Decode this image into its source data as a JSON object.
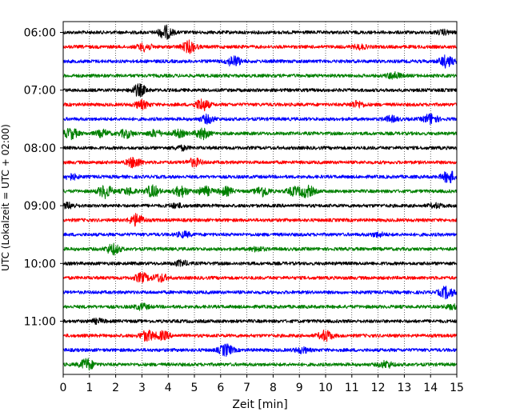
{
  "chart_data": {
    "type": "line",
    "title": "",
    "xlabel": "Zeit  [min]",
    "ylabel": "UTC (Lokalzeit = UTC + 02:00)",
    "xlim": [
      0,
      15
    ],
    "x_ticks": [
      "0",
      "1",
      "2",
      "3",
      "4",
      "5",
      "6",
      "7",
      "8",
      "9",
      "10",
      "11",
      "12",
      "13",
      "14",
      "15"
    ],
    "y_tick_labels": [
      "06:00",
      "07:00",
      "08:00",
      "09:00",
      "10:00",
      "11:00"
    ],
    "grid": "vertical dotted",
    "trace_interval_minutes": 15,
    "trace_start": "06:00",
    "trace_colors": [
      "#000000",
      "#ff0000",
      "#0000ff",
      "#008000"
    ],
    "traces": [
      {
        "start": "06:00",
        "color": "#000000",
        "events": [
          {
            "t": 3.9,
            "a": 1.0
          },
          {
            "t": 14.5,
            "a": 0.3
          }
        ]
      },
      {
        "start": "06:15",
        "color": "#ff0000",
        "events": [
          {
            "t": 3.1,
            "a": 0.6
          },
          {
            "t": 4.8,
            "a": 0.9
          },
          {
            "t": 11.3,
            "a": 0.3
          }
        ]
      },
      {
        "start": "06:30",
        "color": "#0000ff",
        "events": [
          {
            "t": 6.5,
            "a": 0.8
          },
          {
            "t": 14.6,
            "a": 0.9
          }
        ]
      },
      {
        "start": "06:45",
        "color": "#008000",
        "events": [
          {
            "t": 12.6,
            "a": 0.5
          }
        ]
      },
      {
        "start": "07:00",
        "color": "#000000",
        "events": [
          {
            "t": 2.9,
            "a": 0.9
          }
        ]
      },
      {
        "start": "07:15",
        "color": "#ff0000",
        "events": [
          {
            "t": 3.0,
            "a": 0.6
          },
          {
            "t": 5.3,
            "a": 0.9
          },
          {
            "t": 11.2,
            "a": 0.5
          }
        ]
      },
      {
        "start": "07:30",
        "color": "#0000ff",
        "events": [
          {
            "t": 5.5,
            "a": 0.6
          },
          {
            "t": 12.5,
            "a": 0.4
          },
          {
            "t": 14.0,
            "a": 0.8
          }
        ]
      },
      {
        "start": "07:45",
        "color": "#008000",
        "events": [
          {
            "t": 0.3,
            "a": 0.8
          },
          {
            "t": 1.5,
            "a": 0.5
          },
          {
            "t": 2.4,
            "a": 0.6
          },
          {
            "t": 3.5,
            "a": 0.5
          },
          {
            "t": 4.4,
            "a": 0.5
          },
          {
            "t": 5.3,
            "a": 0.8
          }
        ]
      },
      {
        "start": "08:00",
        "color": "#000000",
        "events": [
          {
            "t": 4.5,
            "a": 0.3
          }
        ]
      },
      {
        "start": "08:15",
        "color": "#ff0000",
        "events": [
          {
            "t": 2.7,
            "a": 0.8
          },
          {
            "t": 5.0,
            "a": 0.6
          }
        ]
      },
      {
        "start": "08:30",
        "color": "#0000ff",
        "events": [
          {
            "t": 0.3,
            "a": 0.4
          },
          {
            "t": 14.7,
            "a": 0.9
          }
        ]
      },
      {
        "start": "08:45",
        "color": "#008000",
        "events": [
          {
            "t": 1.6,
            "a": 1.0
          },
          {
            "t": 2.5,
            "a": 0.5
          },
          {
            "t": 3.4,
            "a": 0.9
          },
          {
            "t": 4.5,
            "a": 0.8
          },
          {
            "t": 5.4,
            "a": 0.7
          },
          {
            "t": 6.2,
            "a": 0.6
          },
          {
            "t": 7.6,
            "a": 0.8
          },
          {
            "t": 8.8,
            "a": 0.6
          },
          {
            "t": 9.3,
            "a": 0.9
          }
        ]
      },
      {
        "start": "09:00",
        "color": "#000000",
        "events": [
          {
            "t": 0.2,
            "a": 0.4
          },
          {
            "t": 4.3,
            "a": 0.3
          },
          {
            "t": 14.2,
            "a": 0.3
          }
        ]
      },
      {
        "start": "09:15",
        "color": "#ff0000",
        "events": [
          {
            "t": 2.8,
            "a": 0.9
          }
        ]
      },
      {
        "start": "09:30",
        "color": "#0000ff",
        "events": [
          {
            "t": 4.6,
            "a": 0.4
          },
          {
            "t": 12.0,
            "a": 0.3
          }
        ]
      },
      {
        "start": "09:45",
        "color": "#008000",
        "events": [
          {
            "t": 1.9,
            "a": 0.8
          },
          {
            "t": 7.4,
            "a": 0.3
          }
        ]
      },
      {
        "start": "10:00",
        "color": "#000000",
        "events": [
          {
            "t": 4.5,
            "a": 0.4
          }
        ]
      },
      {
        "start": "10:15",
        "color": "#ff0000",
        "events": [
          {
            "t": 3.0,
            "a": 0.7
          },
          {
            "t": 3.7,
            "a": 0.6
          }
        ]
      },
      {
        "start": "10:30",
        "color": "#0000ff",
        "events": [
          {
            "t": 14.6,
            "a": 0.9
          }
        ]
      },
      {
        "start": "10:45",
        "color": "#008000",
        "events": [
          {
            "t": 3.0,
            "a": 0.4
          },
          {
            "t": 14.8,
            "a": 0.3
          }
        ]
      },
      {
        "start": "11:00",
        "color": "#000000",
        "events": [
          {
            "t": 1.3,
            "a": 0.3
          }
        ]
      },
      {
        "start": "11:15",
        "color": "#ff0000",
        "events": [
          {
            "t": 3.2,
            "a": 0.8
          },
          {
            "t": 3.8,
            "a": 0.6
          },
          {
            "t": 10.0,
            "a": 0.8
          }
        ]
      },
      {
        "start": "11:30",
        "color": "#0000ff",
        "events": [
          {
            "t": 6.2,
            "a": 0.9
          },
          {
            "t": 9.1,
            "a": 0.4
          }
        ]
      },
      {
        "start": "11:45",
        "color": "#008000",
        "events": [
          {
            "t": 0.9,
            "a": 0.9
          },
          {
            "t": 12.3,
            "a": 0.5
          }
        ]
      }
    ]
  }
}
